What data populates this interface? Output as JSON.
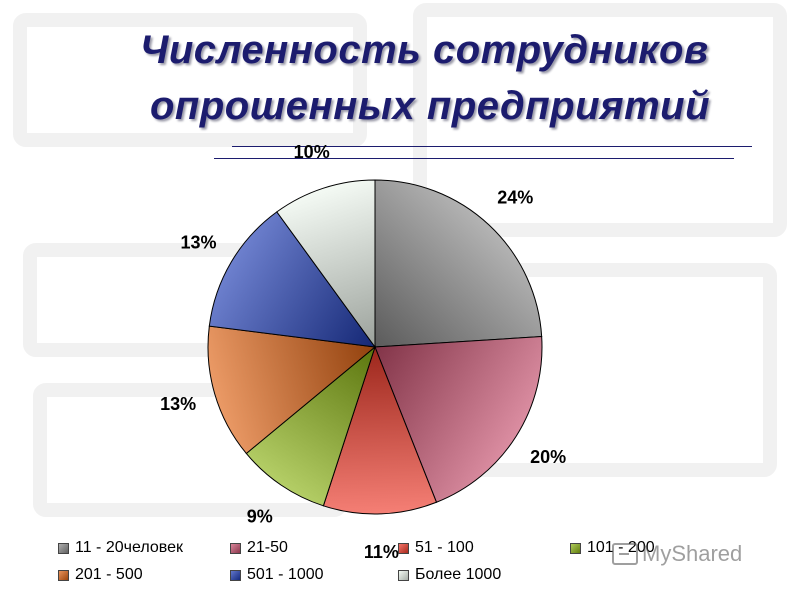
{
  "header": {
    "title_line1": "Численность сотрудников",
    "title_line2": "опрошенных предприятий"
  },
  "watermark": {
    "text": "MyShared"
  },
  "chart_data": {
    "type": "pie",
    "title": "Численность сотрудников опрошенных предприятий",
    "legend_position": "bottom",
    "slices": [
      {
        "label": "11 - 20человек",
        "value": 24,
        "display": "24%",
        "color": "#8c8c8c"
      },
      {
        "label": "21-50",
        "value": 20,
        "display": "20%",
        "color": "#c8506e"
      },
      {
        "label": "51 - 100",
        "value": 11,
        "display": "11%",
        "color": "#f03a2a"
      },
      {
        "label": "101 - 200",
        "value": 9,
        "display": "9%",
        "color": "#8cb414"
      },
      {
        "label": "201 - 500",
        "value": 13,
        "display": "13%",
        "color": "#e06414"
      },
      {
        "label": "501 - 1000",
        "value": 13,
        "display": "13%",
        "color": "#1e3cb4"
      },
      {
        "label": "Более 1000",
        "value": 10,
        "display": "10%",
        "color": "#eef8ee"
      }
    ]
  }
}
